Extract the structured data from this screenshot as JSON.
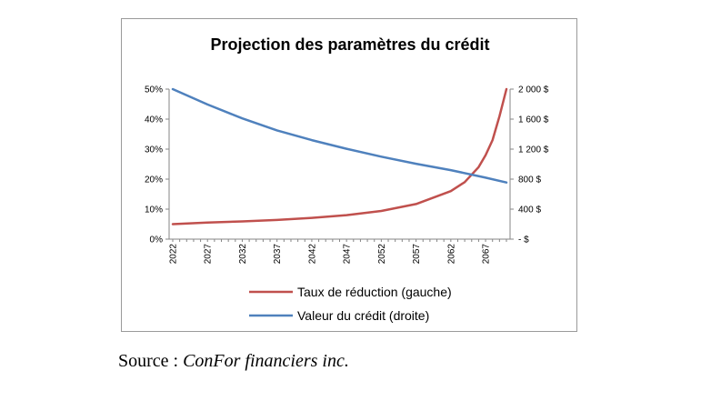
{
  "colors": {
    "left_series": "#c0504d",
    "right_series": "#4f81bd",
    "axis": "#868686",
    "grid": "#000000"
  },
  "source": {
    "prefix": "Source : ",
    "name": "ConFor financiers inc."
  },
  "chart_data": {
    "type": "line",
    "title": "Projection des paramètres du crédit",
    "x_tick_labels": [
      "2022",
      "2027",
      "2032",
      "2037",
      "2042",
      "2047",
      "2052",
      "2057",
      "2062",
      "2067"
    ],
    "x_range": [
      2022,
      2070
    ],
    "y_left_ticks": [
      "0%",
      "10%",
      "20%",
      "30%",
      "40%",
      "50%"
    ],
    "y_left_range": [
      0,
      0.5
    ],
    "y_right_ticks": [
      "-   $",
      "400 $",
      "800 $",
      "1 200 $",
      "1 600 $",
      "2 000 $"
    ],
    "y_right_range": [
      0,
      2000
    ],
    "grid": false,
    "legend_position": "bottom",
    "series": [
      {
        "name": "Taux de réduction (gauche)",
        "axis": "left",
        "x": [
          2022,
          2027,
          2032,
          2037,
          2042,
          2047,
          2052,
          2057,
          2062,
          2064,
          2066,
          2067,
          2068,
          2069,
          2070
        ],
        "y": [
          0.05,
          0.055,
          0.059,
          0.064,
          0.071,
          0.08,
          0.094,
          0.117,
          0.16,
          0.19,
          0.24,
          0.28,
          0.33,
          0.41,
          0.5
        ]
      },
      {
        "name": "Valeur du crédit (droite)",
        "axis": "right",
        "x": [
          2022,
          2027,
          2032,
          2037,
          2042,
          2047,
          2052,
          2057,
          2062,
          2067,
          2070
        ],
        "y": [
          2000,
          1795,
          1610,
          1450,
          1320,
          1205,
          1100,
          1005,
          920,
          820,
          755
        ]
      }
    ]
  }
}
